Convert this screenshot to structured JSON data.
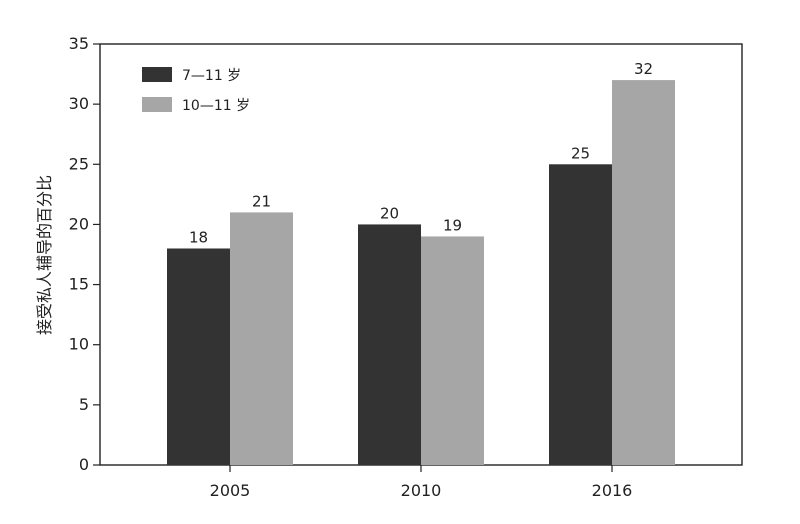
{
  "chart_data": {
    "type": "bar",
    "title": "",
    "xlabel": "",
    "ylabel": "接受私人辅导的百分比",
    "categories": [
      "2005",
      "2010",
      "2016"
    ],
    "series": [
      {
        "name": "7—11 岁",
        "values": [
          18,
          20,
          25
        ],
        "color": "#333333"
      },
      {
        "name": "10—11 岁",
        "values": [
          21,
          19,
          32
        ],
        "color": "#a6a6a6"
      }
    ],
    "ylim": [
      0,
      35
    ],
    "yticks": [
      0,
      5,
      10,
      15,
      20,
      25,
      30,
      35
    ],
    "grid": false,
    "legend_position": "top-left",
    "data_labels": true
  }
}
